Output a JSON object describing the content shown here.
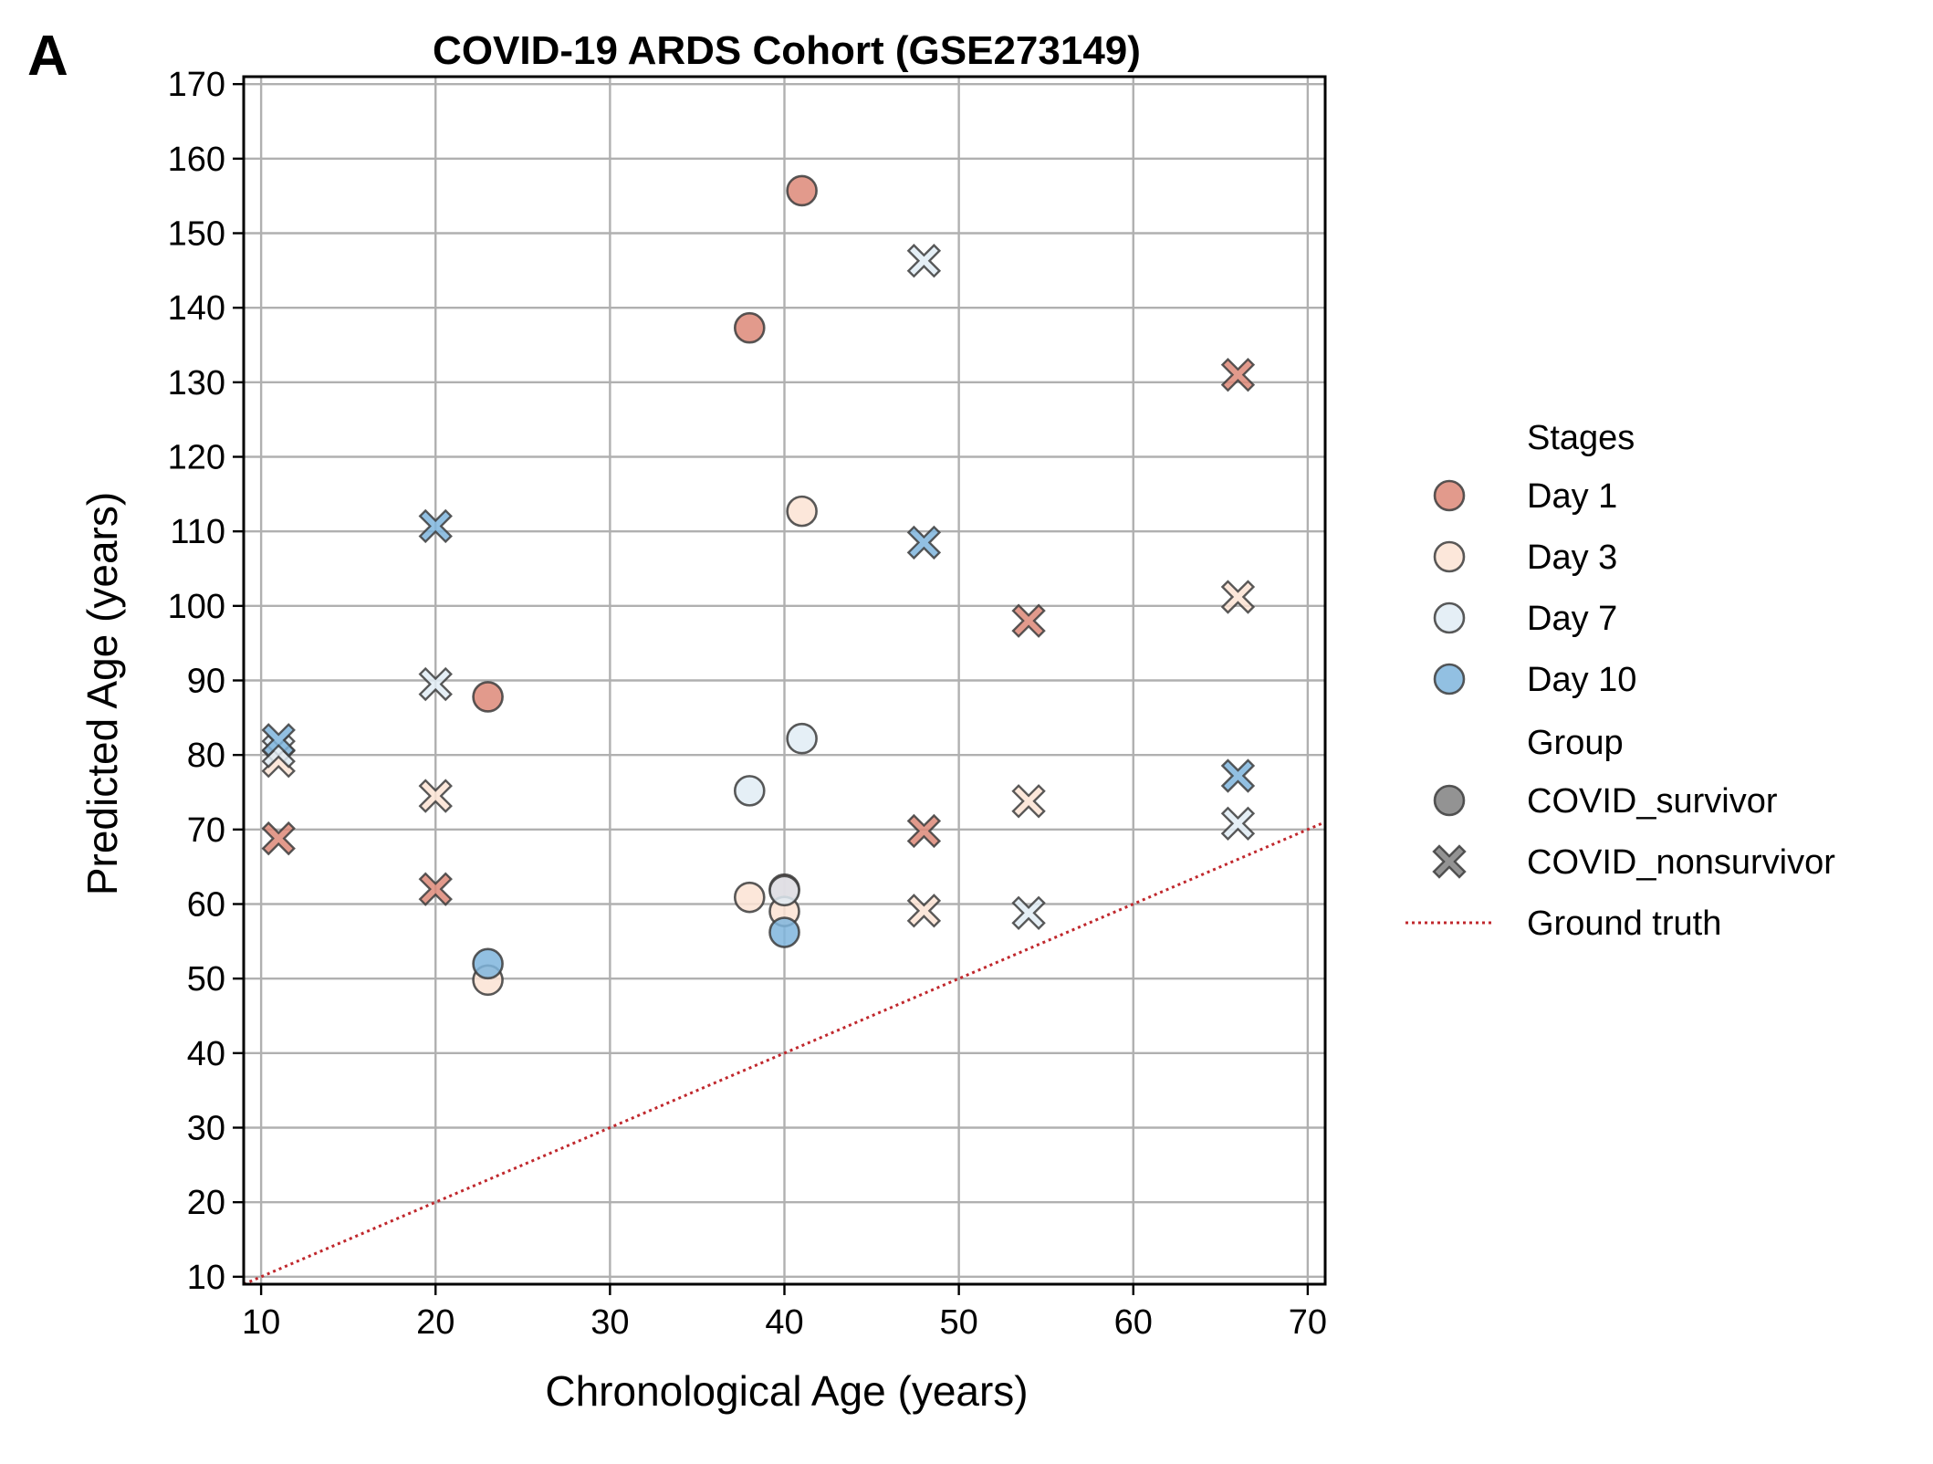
{
  "panel_label": "A",
  "chart_data": {
    "type": "scatter",
    "title": "COVID-19 ARDS Cohort (GSE273149)",
    "xlabel": "Chronological Age (years)",
    "ylabel": "Predicted Age (years)",
    "xlim": [
      9,
      71
    ],
    "ylim": [
      9,
      171
    ],
    "x_ticks": [
      10,
      20,
      30,
      40,
      50,
      60,
      70
    ],
    "y_ticks": [
      10,
      20,
      30,
      40,
      50,
      60,
      70,
      80,
      90,
      100,
      110,
      120,
      130,
      140,
      150,
      160,
      170
    ],
    "grid": true,
    "legend_position": "right, outside plot",
    "legend": {
      "stages_title": "Stages",
      "group_title": "Group",
      "stages": [
        {
          "name": "Day 1",
          "color": "#dd8878"
        },
        {
          "name": "Day 3",
          "color": "#fbe3d4"
        },
        {
          "name": "Day 7",
          "color": "#e1ecf5"
        },
        {
          "name": "Day 10",
          "color": "#7fb5dd"
        }
      ],
      "groups": [
        {
          "name": "COVID_survivor",
          "marker": "circle"
        },
        {
          "name": "COVID_nonsurvivor",
          "marker": "x"
        }
      ],
      "reference_line": {
        "name": "Ground truth",
        "color": "#c0282d",
        "style": "dotted"
      }
    },
    "points": [
      {
        "x": 41,
        "y": 155.7,
        "stage": "Day 1",
        "group": "COVID_survivor"
      },
      {
        "x": 38,
        "y": 137.3,
        "stage": "Day 1",
        "group": "COVID_survivor"
      },
      {
        "x": 23,
        "y": 87.8,
        "stage": "Day 1",
        "group": "COVID_survivor"
      },
      {
        "x": 40,
        "y": 62.0,
        "stage": "Day 1",
        "group": "COVID_survivor"
      },
      {
        "x": 41,
        "y": 112.7,
        "stage": "Day 3",
        "group": "COVID_survivor"
      },
      {
        "x": 38,
        "y": 60.9,
        "stage": "Day 3",
        "group": "COVID_survivor"
      },
      {
        "x": 40,
        "y": 59.0,
        "stage": "Day 3",
        "group": "COVID_survivor"
      },
      {
        "x": 23,
        "y": 49.8,
        "stage": "Day 3",
        "group": "COVID_survivor"
      },
      {
        "x": 41,
        "y": 82.2,
        "stage": "Day 7",
        "group": "COVID_survivor"
      },
      {
        "x": 38,
        "y": 75.2,
        "stage": "Day 7",
        "group": "COVID_survivor"
      },
      {
        "x": 40,
        "y": 61.8,
        "stage": "Day 7",
        "group": "COVID_survivor"
      },
      {
        "x": 23,
        "y": 52.0,
        "stage": "Day 10",
        "group": "COVID_survivor"
      },
      {
        "x": 40,
        "y": 56.2,
        "stage": "Day 10",
        "group": "COVID_survivor"
      },
      {
        "x": 66,
        "y": 131.0,
        "stage": "Day 1",
        "group": "COVID_nonsurvivor"
      },
      {
        "x": 54,
        "y": 98.0,
        "stage": "Day 1",
        "group": "COVID_nonsurvivor"
      },
      {
        "x": 48,
        "y": 69.8,
        "stage": "Day 1",
        "group": "COVID_nonsurvivor"
      },
      {
        "x": 20,
        "y": 62.0,
        "stage": "Day 1",
        "group": "COVID_nonsurvivor"
      },
      {
        "x": 11,
        "y": 68.8,
        "stage": "Day 1",
        "group": "COVID_nonsurvivor"
      },
      {
        "x": 66,
        "y": 101.2,
        "stage": "Day 3",
        "group": "COVID_nonsurvivor"
      },
      {
        "x": 54,
        "y": 73.8,
        "stage": "Day 3",
        "group": "COVID_nonsurvivor"
      },
      {
        "x": 48,
        "y": 59.1,
        "stage": "Day 3",
        "group": "COVID_nonsurvivor"
      },
      {
        "x": 20,
        "y": 74.5,
        "stage": "Day 3",
        "group": "COVID_nonsurvivor"
      },
      {
        "x": 11,
        "y": 79.2,
        "stage": "Day 3",
        "group": "COVID_nonsurvivor"
      },
      {
        "x": 48,
        "y": 146.3,
        "stage": "Day 7",
        "group": "COVID_nonsurvivor"
      },
      {
        "x": 20,
        "y": 89.5,
        "stage": "Day 7",
        "group": "COVID_nonsurvivor"
      },
      {
        "x": 54,
        "y": 58.8,
        "stage": "Day 7",
        "group": "COVID_nonsurvivor"
      },
      {
        "x": 66,
        "y": 70.8,
        "stage": "Day 7",
        "group": "COVID_nonsurvivor"
      },
      {
        "x": 11,
        "y": 80.5,
        "stage": "Day 7",
        "group": "COVID_nonsurvivor"
      },
      {
        "x": 20,
        "y": 110.7,
        "stage": "Day 10",
        "group": "COVID_nonsurvivor"
      },
      {
        "x": 48,
        "y": 108.5,
        "stage": "Day 10",
        "group": "COVID_nonsurvivor"
      },
      {
        "x": 66,
        "y": 77.2,
        "stage": "Day 10",
        "group": "COVID_nonsurvivor"
      },
      {
        "x": 11,
        "y": 82.0,
        "stage": "Day 10",
        "group": "COVID_nonsurvivor"
      }
    ]
  }
}
